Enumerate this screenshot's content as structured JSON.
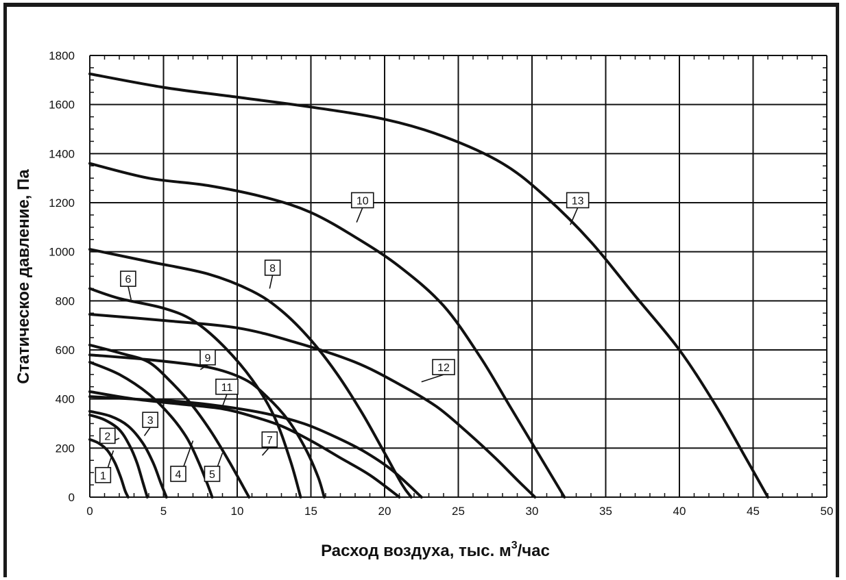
{
  "chart_data": {
    "type": "line",
    "title": "",
    "xlabel": "Расход воздуха, тыс. м",
    "xlabel_sup": "3",
    "xlabel_suffix": "/час",
    "ylabel": "Статическое давление, Па",
    "xlim": [
      0,
      50
    ],
    "ylim": [
      0,
      1800
    ],
    "x_ticks": [
      0,
      5,
      10,
      15,
      20,
      25,
      30,
      35,
      40,
      45,
      50
    ],
    "y_ticks": [
      0,
      200,
      400,
      600,
      800,
      1000,
      1200,
      1400,
      1600,
      1800
    ],
    "grid": true,
    "series": [
      {
        "name": "1",
        "x": [
          0,
          0.6,
          1.2,
          1.7,
          2.1,
          2.4,
          2.6
        ],
        "y": [
          235,
          220,
          190,
          140,
          80,
          25,
          0
        ]
      },
      {
        "name": "2",
        "x": [
          0,
          1.0,
          2.0,
          2.7,
          3.2,
          3.6,
          3.9
        ],
        "y": [
          335,
          315,
          275,
          210,
          140,
          60,
          0
        ]
      },
      {
        "name": "3",
        "x": [
          0,
          1.4,
          2.6,
          3.6,
          4.3,
          4.8,
          5.2
        ],
        "y": [
          350,
          330,
          290,
          220,
          140,
          60,
          0
        ]
      },
      {
        "name": "4",
        "x": [
          0,
          2.0,
          4.0,
          5.5,
          6.6,
          7.4,
          8.0,
          8.3
        ],
        "y": [
          550,
          500,
          420,
          330,
          240,
          140,
          50,
          0
        ]
      },
      {
        "name": "5",
        "x": [
          0,
          2.2,
          4.0,
          5.5,
          7.0,
          8.3,
          9.5,
          10.8
        ],
        "y": [
          620,
          585,
          550,
          470,
          370,
          260,
          140,
          0
        ]
      },
      {
        "name": "6",
        "x": [
          0,
          2.0,
          5.0,
          7.0,
          9.0,
          11.0,
          12.5,
          13.6,
          14.3
        ],
        "y": [
          850,
          810,
          770,
          720,
          620,
          480,
          330,
          150,
          0
        ]
      },
      {
        "name": "7",
        "x": [
          0,
          3.0,
          6.0,
          9.0,
          11.0,
          13.0,
          15.0,
          17.0,
          19.0,
          21.0
        ],
        "y": [
          430,
          400,
          380,
          360,
          330,
          290,
          230,
          160,
          90,
          0
        ]
      },
      {
        "name": "8",
        "x": [
          0,
          4.0,
          8.0,
          11.0,
          13.0,
          15.0,
          16.8,
          18.5,
          20.0,
          21.2,
          21.8
        ],
        "y": [
          1010,
          960,
          910,
          840,
          760,
          640,
          500,
          340,
          180,
          50,
          0
        ]
      },
      {
        "name": "9",
        "x": [
          0,
          4.0,
          8.0,
          10.5,
          12.0,
          13.5,
          14.7,
          15.5,
          15.9
        ],
        "y": [
          580,
          560,
          530,
          480,
          410,
          310,
          190,
          80,
          0
        ]
      },
      {
        "name": "10",
        "x": [
          0,
          4.0,
          8.0,
          12.0,
          15.0,
          18.0,
          21.0,
          24.0,
          26.5,
          28.5,
          30.5,
          32.2
        ],
        "y": [
          1360,
          1300,
          1270,
          1220,
          1160,
          1060,
          940,
          780,
          570,
          370,
          170,
          0
        ]
      },
      {
        "name": "11",
        "x": [
          0,
          3.0,
          6.0,
          9.0,
          12.0,
          14.5,
          16.5,
          18.5,
          20.5,
          22.5
        ],
        "y": [
          410,
          400,
          390,
          370,
          340,
          300,
          250,
          190,
          110,
          0
        ]
      },
      {
        "name": "12",
        "x": [
          0,
          5.0,
          10.0,
          14.0,
          18.0,
          21.0,
          23.5,
          25.5,
          27.5,
          29.0,
          30.2
        ],
        "y": [
          745,
          720,
          690,
          630,
          550,
          460,
          370,
          270,
          160,
          70,
          0
        ]
      },
      {
        "name": "13",
        "x": [
          0,
          5.0,
          10.0,
          15.0,
          20.0,
          24.0,
          28.0,
          31.0,
          34.0,
          37.0,
          40.0,
          42.5,
          44.5,
          46.0
        ],
        "y": [
          1725,
          1670,
          1630,
          1590,
          1540,
          1470,
          1360,
          1220,
          1040,
          820,
          600,
          370,
          160,
          0
        ]
      }
    ],
    "curve_labels": [
      {
        "text": "1",
        "x": 0.9,
        "y": 90,
        "tx": 1.6,
        "ty": 190
      },
      {
        "text": "2",
        "x": 1.2,
        "y": 250,
        "tx": 2.0,
        "ty": 240
      },
      {
        "text": "3",
        "x": 4.1,
        "y": 315,
        "tx": 3.7,
        "ty": 250
      },
      {
        "text": "4",
        "x": 6.0,
        "y": 95,
        "tx": 7.0,
        "ty": 230
      },
      {
        "text": "5",
        "x": 8.3,
        "y": 95,
        "tx": 9.0,
        "ty": 180
      },
      {
        "text": "6",
        "x": 2.6,
        "y": 890,
        "tx": 2.8,
        "ty": 805
      },
      {
        "text": "7",
        "x": 12.2,
        "y": 235,
        "tx": 11.7,
        "ty": 170
      },
      {
        "text": "8",
        "x": 12.4,
        "y": 935,
        "tx": 12.2,
        "ty": 850
      },
      {
        "text": "9",
        "x": 8.0,
        "y": 570,
        "tx": 7.5,
        "ty": 520
      },
      {
        "text": "10",
        "x": 18.5,
        "y": 1210,
        "tx": 18.1,
        "ty": 1120
      },
      {
        "text": "11",
        "x": 9.3,
        "y": 450,
        "tx": 9.0,
        "ty": 370
      },
      {
        "text": "12",
        "x": 24.0,
        "y": 530,
        "tx": 22.5,
        "ty": 470
      },
      {
        "text": "13",
        "x": 33.1,
        "y": 1210,
        "tx": 32.6,
        "ty": 1110
      }
    ]
  }
}
